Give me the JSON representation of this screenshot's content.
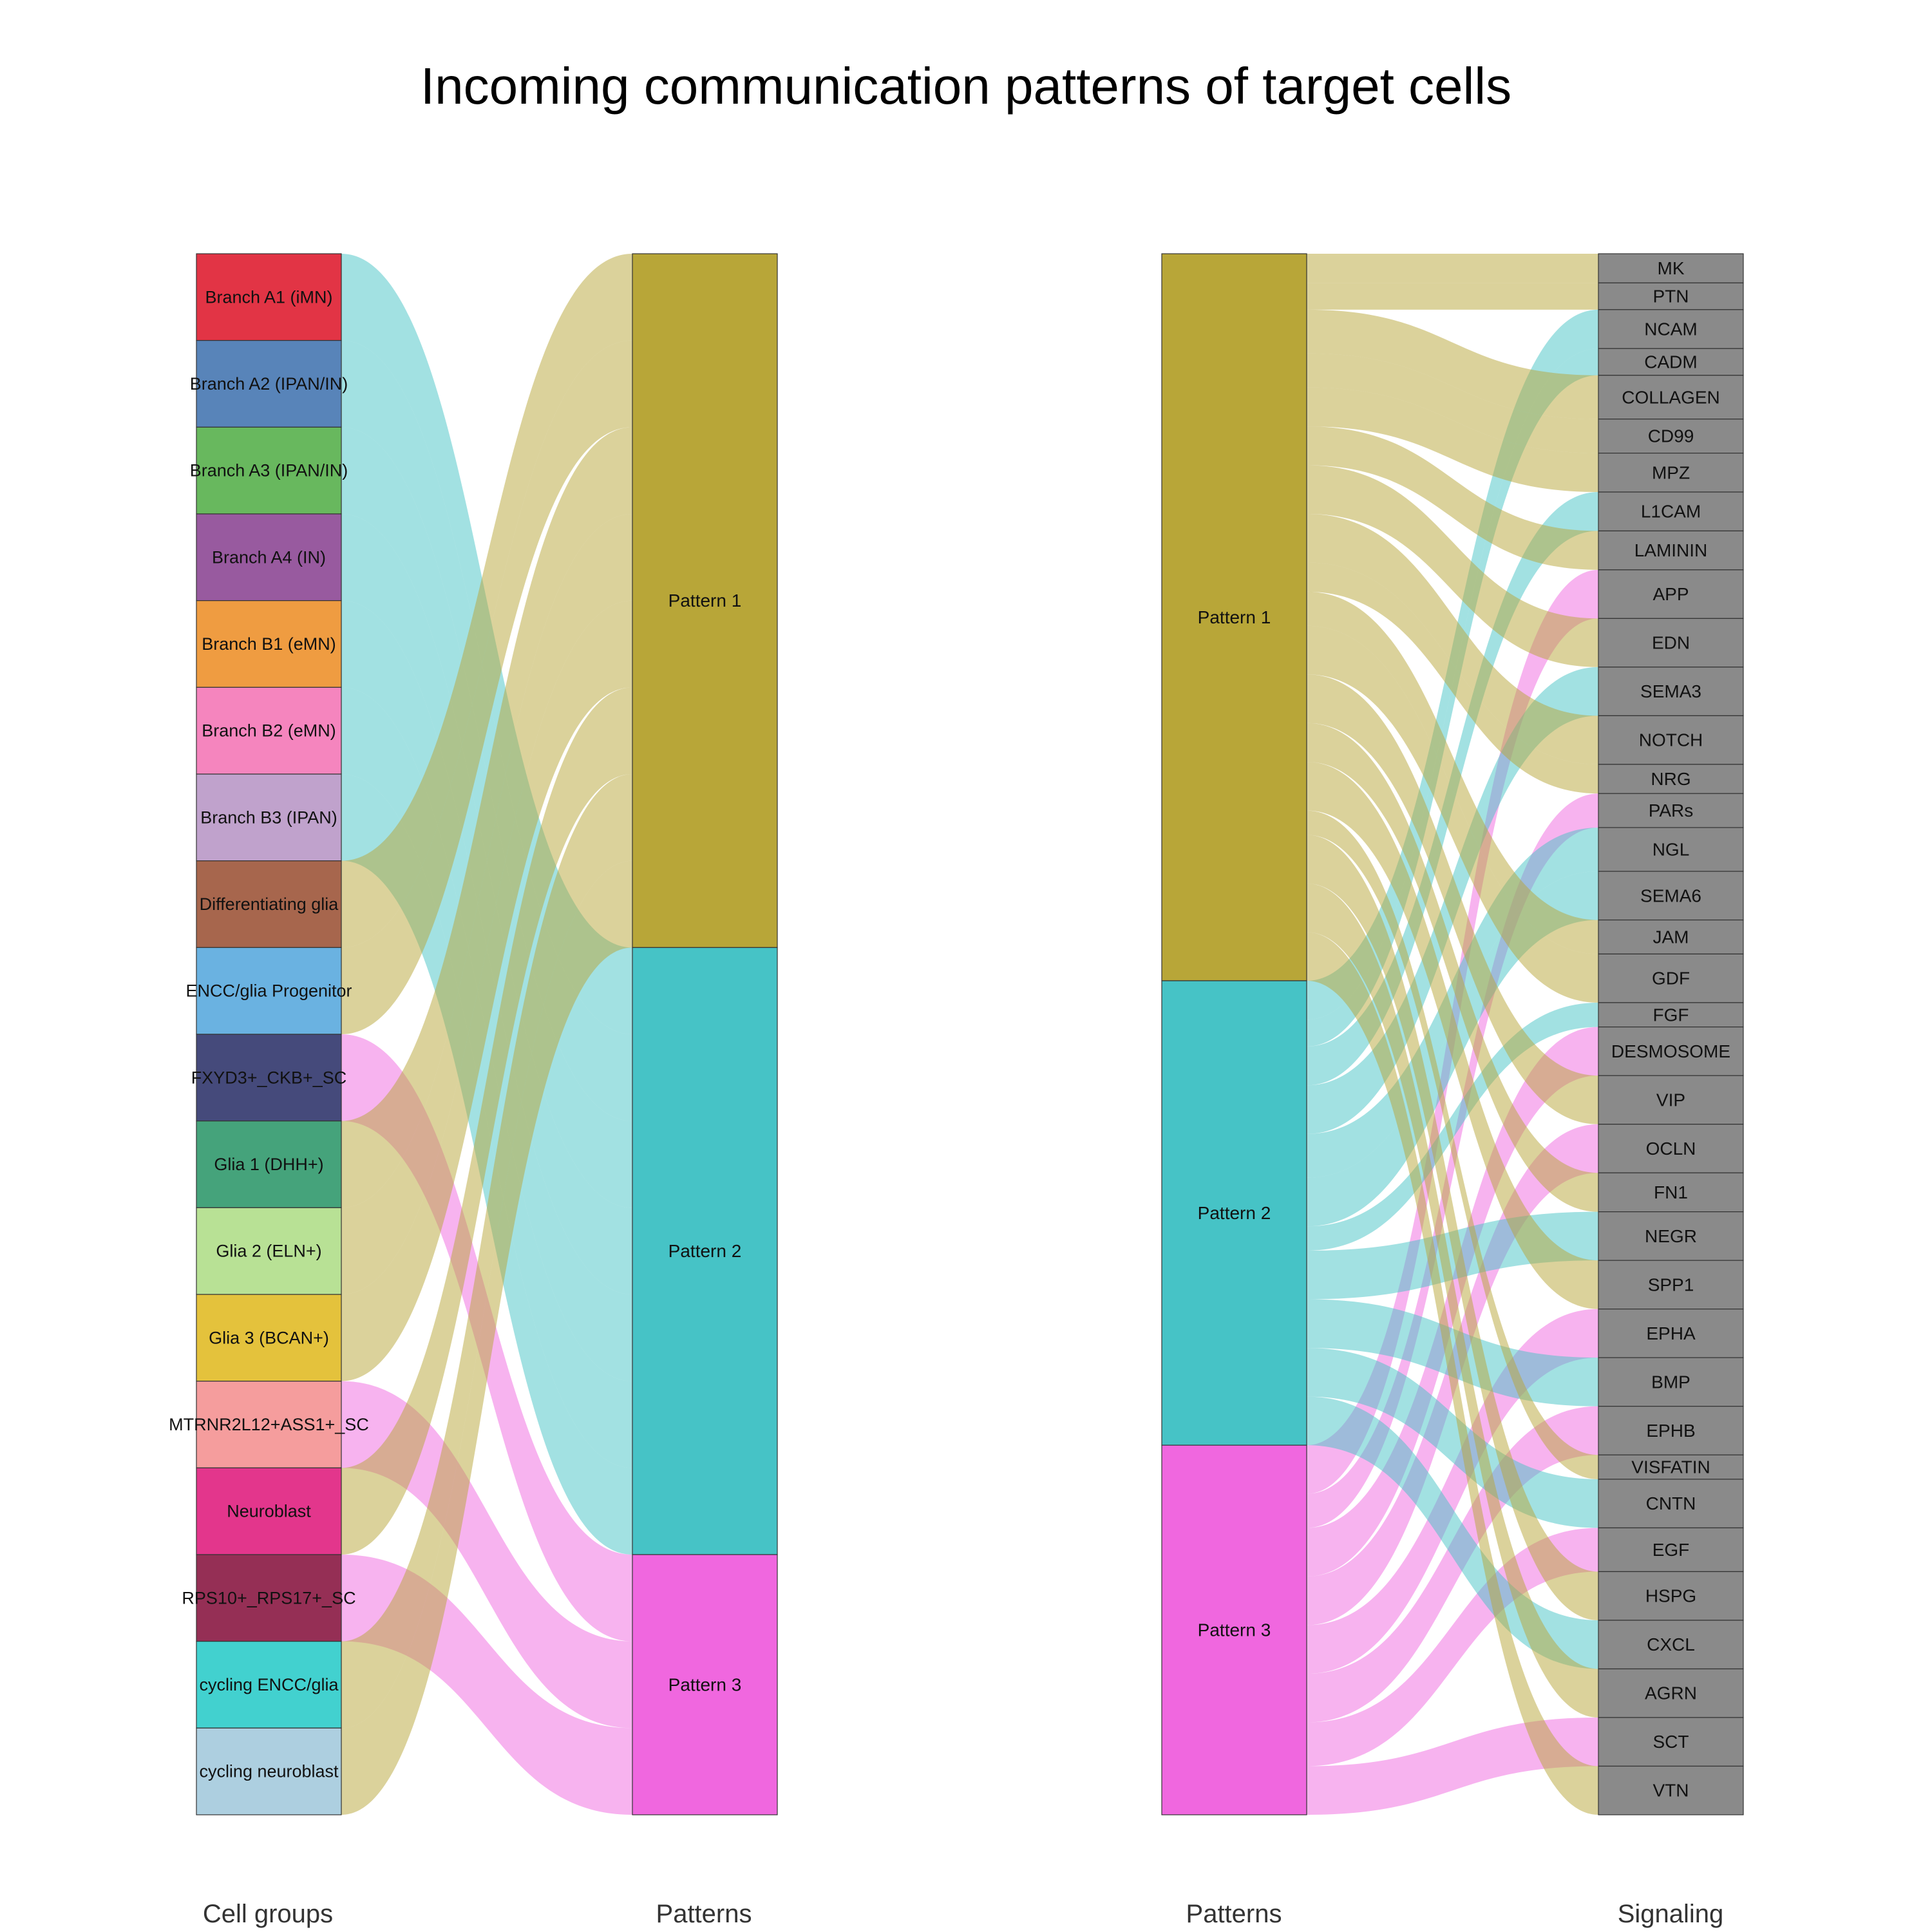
{
  "title": "Incoming communication patterns of target cells",
  "left_panel": {
    "left_axis_label": "Cell groups",
    "right_axis_label": "Patterns"
  },
  "right_panel": {
    "left_axis_label": "Patterns",
    "right_axis_label": "Signaling"
  },
  "colors": {
    "Pattern 1": "#B8A638",
    "Pattern 2": "#46C3C6",
    "Pattern 3": "#F067DF",
    "signaling_node": "#8A8A8A"
  },
  "chart_data": [
    {
      "type": "alluvial",
      "left_nodes": [
        {
          "name": "Branch A1 (iMN)",
          "color": "#E23445"
        },
        {
          "name": "Branch A2 (IPAN/IN)",
          "color": "#5884B9"
        },
        {
          "name": "Branch A3 (IPAN/IN)",
          "color": "#68B85E"
        },
        {
          "name": "Branch A4 (IN)",
          "color": "#985A9F"
        },
        {
          "name": "Branch B1 (eMN)",
          "color": "#EF9C41"
        },
        {
          "name": "Branch B2 (eMN)",
          "color": "#F585BE"
        },
        {
          "name": "Branch B3 (IPAN)",
          "color": "#C0A2CC"
        },
        {
          "name": "Differentiating glia",
          "color": "#A7664D"
        },
        {
          "name": "ENCC/glia Progenitor",
          "color": "#6AB2E1"
        },
        {
          "name": "FXYD3+_CKB+_SC",
          "color": "#454A7B"
        },
        {
          "name": "Glia 1 (DHH+)",
          "color": "#45A37B"
        },
        {
          "name": "Glia 2 (ELN+)",
          "color": "#B8E195"
        },
        {
          "name": "Glia 3 (BCAN+)",
          "color": "#E4C23C"
        },
        {
          "name": "MTRNR2L12+ASS1+_SC",
          "color": "#F59D9D"
        },
        {
          "name": "Neuroblast",
          "color": "#E3368C"
        },
        {
          "name": "RPS10+_RPS17+_SC",
          "color": "#952F55"
        },
        {
          "name": "cycling ENCC/glia",
          "color": "#42D1CF"
        },
        {
          "name": "cycling neuroblast",
          "color": "#ADCFE0"
        }
      ],
      "right_nodes": [
        "Pattern 1",
        "Pattern 2",
        "Pattern 3"
      ],
      "flows": [
        {
          "source": "Branch A1 (iMN)",
          "target": "Pattern 2",
          "value": 1
        },
        {
          "source": "Branch A2 (IPAN/IN)",
          "target": "Pattern 2",
          "value": 1
        },
        {
          "source": "Branch A3 (IPAN/IN)",
          "target": "Pattern 2",
          "value": 1
        },
        {
          "source": "Branch A4 (IN)",
          "target": "Pattern 2",
          "value": 1
        },
        {
          "source": "Branch B1 (eMN)",
          "target": "Pattern 2",
          "value": 1
        },
        {
          "source": "Branch B2 (eMN)",
          "target": "Pattern 2",
          "value": 1
        },
        {
          "source": "Branch B3 (IPAN)",
          "target": "Pattern 2",
          "value": 1
        },
        {
          "source": "Differentiating glia",
          "target": "Pattern 1",
          "value": 1
        },
        {
          "source": "ENCC/glia Progenitor",
          "target": "Pattern 1",
          "value": 1
        },
        {
          "source": "FXYD3+_CKB+_SC",
          "target": "Pattern 3",
          "value": 1
        },
        {
          "source": "Glia 1 (DHH+)",
          "target": "Pattern 1",
          "value": 1
        },
        {
          "source": "Glia 2 (ELN+)",
          "target": "Pattern 1",
          "value": 1
        },
        {
          "source": "Glia 3 (BCAN+)",
          "target": "Pattern 1",
          "value": 1
        },
        {
          "source": "MTRNR2L12+ASS1+_SC",
          "target": "Pattern 3",
          "value": 1
        },
        {
          "source": "Neuroblast",
          "target": "Pattern 1",
          "value": 1
        },
        {
          "source": "RPS10+_RPS17+_SC",
          "target": "Pattern 3",
          "value": 1
        },
        {
          "source": "cycling ENCC/glia",
          "target": "Pattern 1",
          "value": 1
        },
        {
          "source": "cycling neuroblast",
          "target": "Pattern 1",
          "value": 1
        }
      ]
    },
    {
      "type": "alluvial",
      "left_nodes": [
        "Pattern 1",
        "Pattern 2",
        "Pattern 3"
      ],
      "right_nodes": [
        "MK",
        "PTN",
        "NCAM",
        "CADM",
        "COLLAGEN",
        "CD99",
        "MPZ",
        "L1CAM",
        "LAMININ",
        "APP",
        "EDN",
        "SEMA3",
        "NOTCH",
        "NRG",
        "PARs",
        "NGL",
        "SEMA6",
        "JAM",
        "GDF",
        "FGF",
        "DESMOSOME",
        "VIP",
        "OCLN",
        "FN1",
        "NEGR",
        "SPP1",
        "EPHA",
        "BMP",
        "EPHB",
        "VISFATIN",
        "CNTN",
        "EGF",
        "HSPG",
        "CXCL",
        "AGRN",
        "SCT",
        "VTN"
      ],
      "flows": [
        {
          "source": "Pattern 1",
          "target": "MK",
          "value": 0.6
        },
        {
          "source": "Pattern 1",
          "target": "PTN",
          "value": 0.55
        },
        {
          "source": "Pattern 2",
          "target": "NCAM",
          "value": 0.8
        },
        {
          "source": "Pattern 2",
          "target": "CADM",
          "value": 0.55
        },
        {
          "source": "Pattern 1",
          "target": "COLLAGEN",
          "value": 0.9
        },
        {
          "source": "Pattern 1",
          "target": "CD99",
          "value": 0.7
        },
        {
          "source": "Pattern 1",
          "target": "MPZ",
          "value": 0.8
        },
        {
          "source": "Pattern 2",
          "target": "L1CAM",
          "value": 0.8
        },
        {
          "source": "Pattern 1",
          "target": "LAMININ",
          "value": 0.8
        },
        {
          "source": "Pattern 3",
          "target": "APP",
          "value": 1.0
        },
        {
          "source": "Pattern 1",
          "target": "EDN",
          "value": 1.0
        },
        {
          "source": "Pattern 2",
          "target": "SEMA3",
          "value": 1.0
        },
        {
          "source": "Pattern 1",
          "target": "NOTCH",
          "value": 1.0
        },
        {
          "source": "Pattern 1",
          "target": "NRG",
          "value": 0.6
        },
        {
          "source": "Pattern 3",
          "target": "PARs",
          "value": 0.7
        },
        {
          "source": "Pattern 2",
          "target": "NGL",
          "value": 0.9
        },
        {
          "source": "Pattern 2",
          "target": "SEMA6",
          "value": 1.0
        },
        {
          "source": "Pattern 1",
          "target": "JAM",
          "value": 0.7
        },
        {
          "source": "Pattern 1",
          "target": "GDF",
          "value": 1.0
        },
        {
          "source": "Pattern 2",
          "target": "FGF",
          "value": 0.5
        },
        {
          "source": "Pattern 3",
          "target": "DESMOSOME",
          "value": 1.0
        },
        {
          "source": "Pattern 1",
          "target": "VIP",
          "value": 1.0
        },
        {
          "source": "Pattern 3",
          "target": "OCLN",
          "value": 1.0
        },
        {
          "source": "Pattern 1",
          "target": "FN1",
          "value": 0.8
        },
        {
          "source": "Pattern 2",
          "target": "NEGR",
          "value": 1.0
        },
        {
          "source": "Pattern 1",
          "target": "SPP1",
          "value": 1.0
        },
        {
          "source": "Pattern 3",
          "target": "EPHA",
          "value": 1.0
        },
        {
          "source": "Pattern 2",
          "target": "BMP",
          "value": 1.0
        },
        {
          "source": "Pattern 3",
          "target": "EPHB",
          "value": 1.0
        },
        {
          "source": "Pattern 1",
          "target": "VISFATIN",
          "value": 0.5
        },
        {
          "source": "Pattern 2",
          "target": "CNTN",
          "value": 1.0
        },
        {
          "source": "Pattern 3",
          "target": "EGF",
          "value": 0.9
        },
        {
          "source": "Pattern 1",
          "target": "HSPG",
          "value": 1.0
        },
        {
          "source": "Pattern 2",
          "target": "CXCL",
          "value": 1.0
        },
        {
          "source": "Pattern 1",
          "target": "AGRN",
          "value": 1.0
        },
        {
          "source": "Pattern 3",
          "target": "SCT",
          "value": 1.0
        },
        {
          "source": "Pattern 1",
          "target": "VTN",
          "value": 1.0
        }
      ]
    }
  ]
}
